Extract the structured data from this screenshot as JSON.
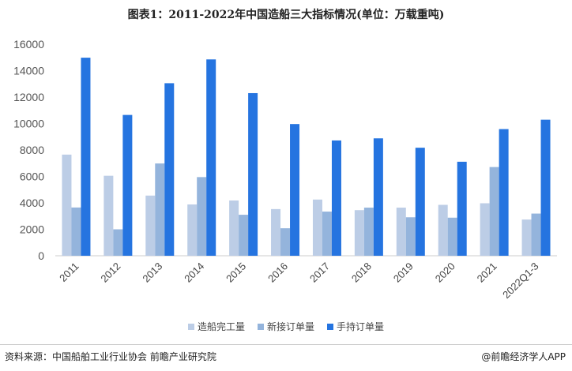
{
  "chart_data": {
    "type": "bar",
    "title": "图表1：2011-2022年中国造船三大指标情况(单位：万载重吨)",
    "categories": [
      "2011",
      "2012",
      "2013",
      "2014",
      "2015",
      "2016",
      "2017",
      "2018",
      "2019",
      "2020",
      "2021",
      "2022Q1-3"
    ],
    "series": [
      {
        "name": "造船完工量",
        "color": "#bccde6",
        "values": [
          7650,
          6050,
          4550,
          3880,
          4180,
          3530,
          4250,
          3450,
          3640,
          3850,
          3970,
          2740
        ]
      },
      {
        "name": "新接订单量",
        "color": "#94b4dc",
        "values": [
          3650,
          2000,
          6980,
          5950,
          3100,
          2080,
          3340,
          3640,
          2910,
          2880,
          6710,
          3190
        ]
      },
      {
        "name": "手持订单量",
        "color": "#2574e0",
        "values": [
          14980,
          10650,
          13050,
          14850,
          12300,
          9960,
          8720,
          8880,
          8170,
          7110,
          9580,
          10290
        ]
      }
    ],
    "ylim": [
      0,
      16000
    ],
    "yticks": [
      "0",
      "2000",
      "4000",
      "6000",
      "8000",
      "10000",
      "12000",
      "14000",
      "16000"
    ],
    "grid": false,
    "legend": "bottom"
  },
  "footer": {
    "source": "资料来源：中国船舶工业行业协会 前瞻产业研究院",
    "brand": "@前瞻经济学人APP"
  }
}
